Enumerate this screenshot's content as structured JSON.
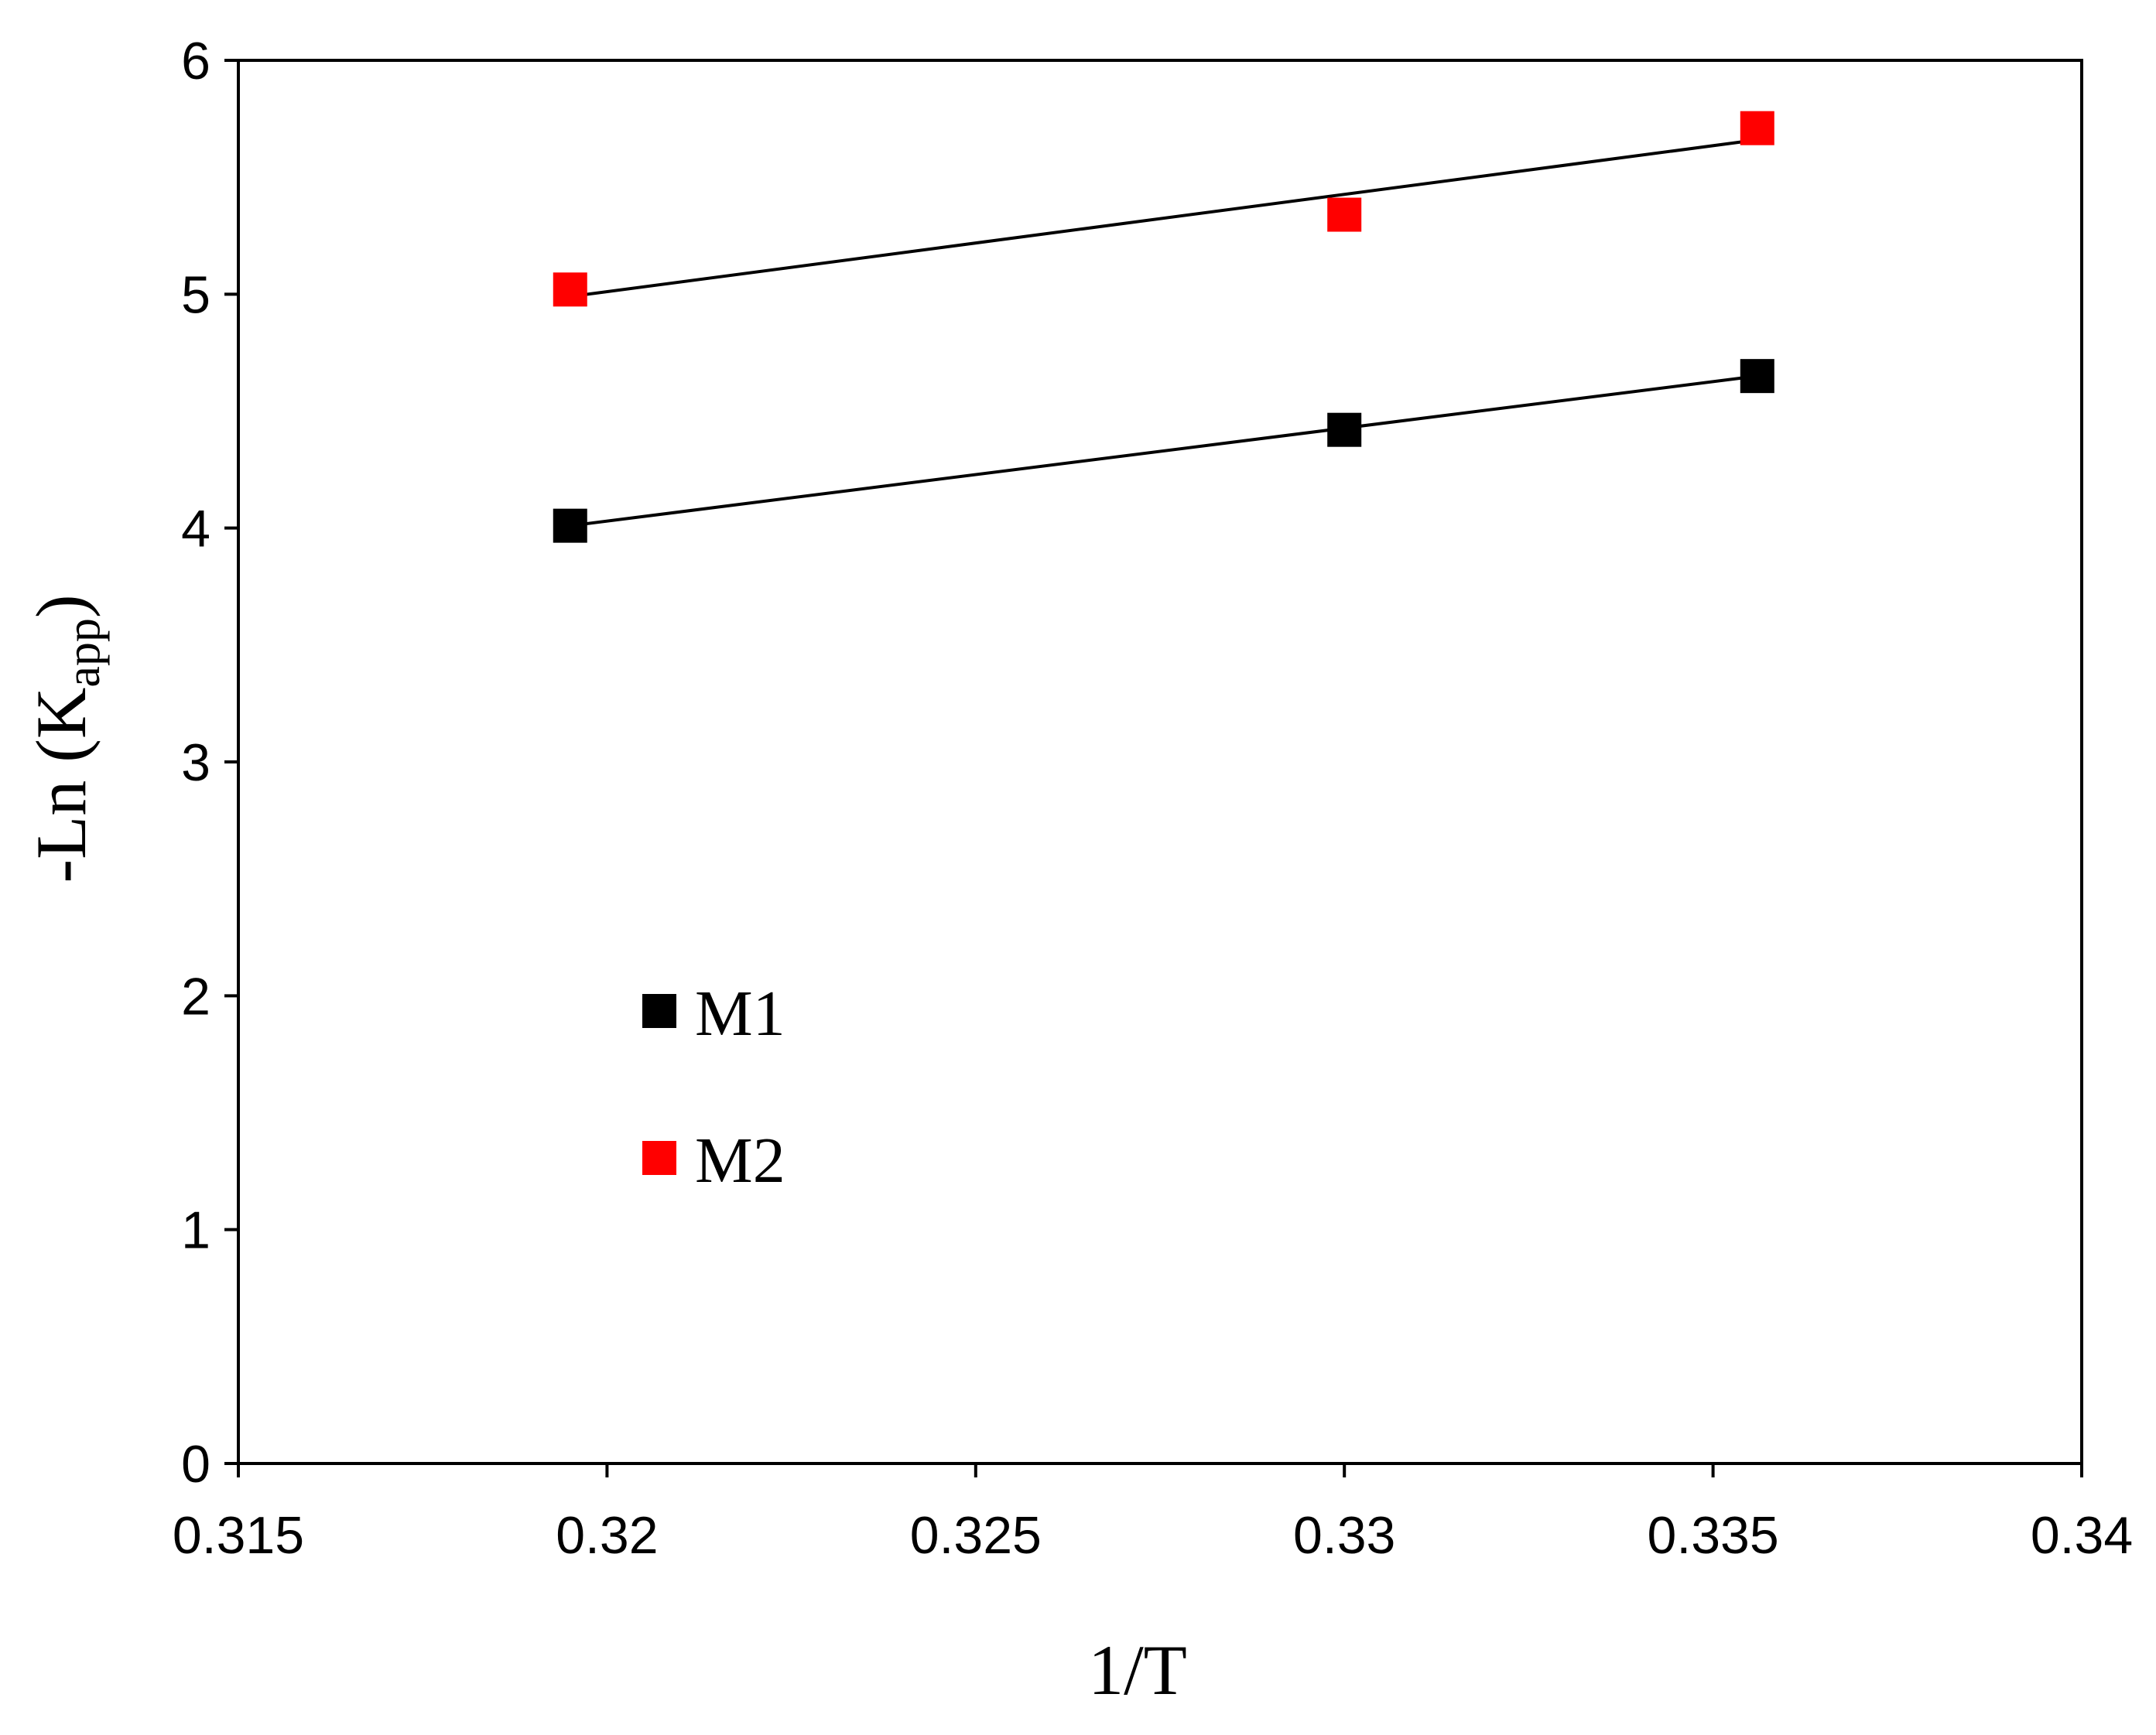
{
  "chart_data": {
    "type": "scatter",
    "xlabel": "1/T",
    "ylabel": {
      "prefix": "-Ln (K",
      "subscript": "app",
      "suffix": ")"
    },
    "xlim": [
      0.315,
      0.34
    ],
    "ylim": [
      0,
      6
    ],
    "x_ticks": [
      0.315,
      0.32,
      0.325,
      0.33,
      0.335,
      0.34
    ],
    "x_tick_labels": [
      "0.315",
      "0.32",
      "0.325",
      "0.33",
      "0.335",
      "0.34"
    ],
    "y_ticks": [
      0,
      1,
      2,
      3,
      4,
      5,
      6
    ],
    "y_tick_labels": [
      "0",
      "1",
      "2",
      "3",
      "4",
      "5",
      "6"
    ],
    "grid": false,
    "legend_position": "lower-left",
    "series": [
      {
        "name": "M1",
        "color": "#000000",
        "marker": "square",
        "points": [
          {
            "x": 0.3195,
            "y": 4.01
          },
          {
            "x": 0.33,
            "y": 4.42
          },
          {
            "x": 0.3356,
            "y": 4.65
          }
        ],
        "trendline": [
          {
            "x": 0.3195,
            "y": 4.01
          },
          {
            "x": 0.3356,
            "y": 4.65
          }
        ]
      },
      {
        "name": "M2",
        "color": "#ff0000",
        "marker": "square",
        "points": [
          {
            "x": 0.3195,
            "y": 5.02
          },
          {
            "x": 0.33,
            "y": 5.34
          },
          {
            "x": 0.3356,
            "y": 5.71
          }
        ],
        "trendline": [
          {
            "x": 0.3195,
            "y": 4.99
          },
          {
            "x": 0.3356,
            "y": 5.66
          }
        ]
      }
    ]
  }
}
